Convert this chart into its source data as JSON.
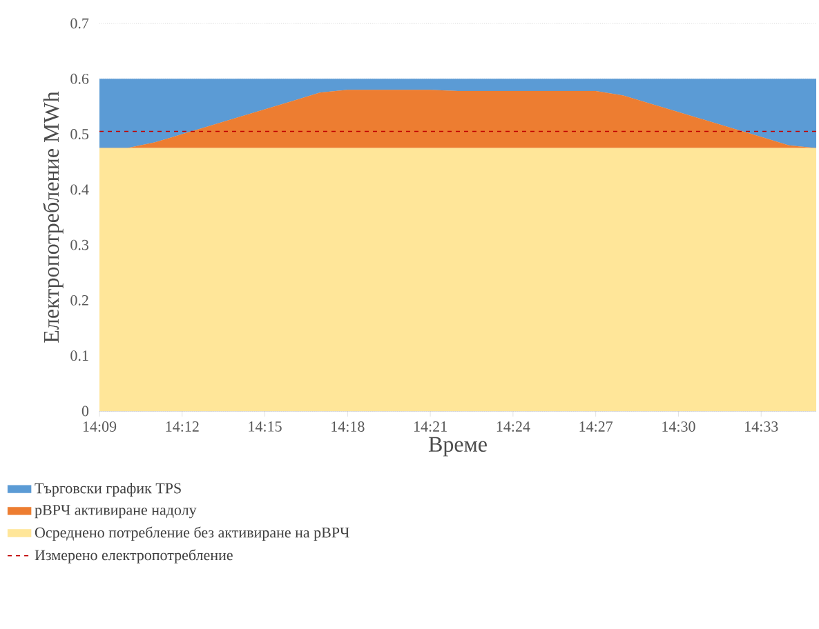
{
  "chart_data": {
    "type": "area",
    "stacked": true,
    "xlabel": "Време",
    "ylabel": "Електропотребление MWh",
    "x": [
      14.15,
      14.1667,
      14.1833,
      14.2,
      14.2167,
      14.2333,
      14.25,
      14.2667,
      14.2833,
      14.3,
      14.3167,
      14.3333,
      14.35,
      14.3667,
      14.3833,
      14.4,
      14.4167,
      14.4333,
      14.45,
      14.4667,
      14.4833,
      14.5,
      14.5167,
      14.5333,
      14.55,
      14.5667,
      14.5833
    ],
    "series": [
      {
        "name": "Осреднено потребление без активиране на рВРЧ",
        "color": "#ffe699",
        "values": [
          0.475,
          0.475,
          0.475,
          0.475,
          0.475,
          0.475,
          0.475,
          0.475,
          0.475,
          0.475,
          0.475,
          0.475,
          0.475,
          0.475,
          0.475,
          0.475,
          0.475,
          0.475,
          0.475,
          0.475,
          0.475,
          0.475,
          0.475,
          0.475,
          0.475,
          0.475,
          0.475
        ]
      },
      {
        "name": "рВРЧ активиране надолу",
        "color": "#ed7d31",
        "values": [
          0,
          0,
          0.01,
          0.025,
          0.04,
          0.055,
          0.07,
          0.085,
          0.1,
          0.105,
          0.105,
          0.105,
          0.105,
          0.103,
          0.103,
          0.103,
          0.103,
          0.103,
          0.103,
          0.095,
          0.08,
          0.065,
          0.05,
          0.035,
          0.02,
          0.005,
          0
        ]
      },
      {
        "name": "Търговски график TPS",
        "color": "#5b9bd5",
        "values": [
          0.125,
          0.125,
          0.115,
          0.1,
          0.085,
          0.07,
          0.055,
          0.04,
          0.025,
          0.02,
          0.02,
          0.02,
          0.02,
          0.022,
          0.022,
          0.022,
          0.022,
          0.022,
          0.022,
          0.03,
          0.045,
          0.06,
          0.075,
          0.09,
          0.105,
          0.12,
          0.125
        ]
      }
    ],
    "ref_lines": [
      {
        "axis": "y",
        "value": 0.505,
        "label": "Измерено електропотребление",
        "color": "#c00000",
        "line_style": "dashed"
      }
    ],
    "xlim": [
      14.15,
      14.5833
    ],
    "xticks": [
      {
        "value": 14.15,
        "label": "14:09"
      },
      {
        "value": 14.2,
        "label": "14:12"
      },
      {
        "value": 14.25,
        "label": "14:15"
      },
      {
        "value": 14.3,
        "label": "14:18"
      },
      {
        "value": 14.35,
        "label": "14:21"
      },
      {
        "value": 14.4,
        "label": "14:24"
      },
      {
        "value": 14.45,
        "label": "14:27"
      },
      {
        "value": 14.5,
        "label": "14:30"
      },
      {
        "value": 14.55,
        "label": "14:33"
      }
    ],
    "ylim": [
      0,
      0.7
    ],
    "yticks": [
      0,
      0.1,
      0.2,
      0.3,
      0.4,
      0.5,
      0.6,
      0.7
    ],
    "grid": "y",
    "legend": "bottom"
  }
}
